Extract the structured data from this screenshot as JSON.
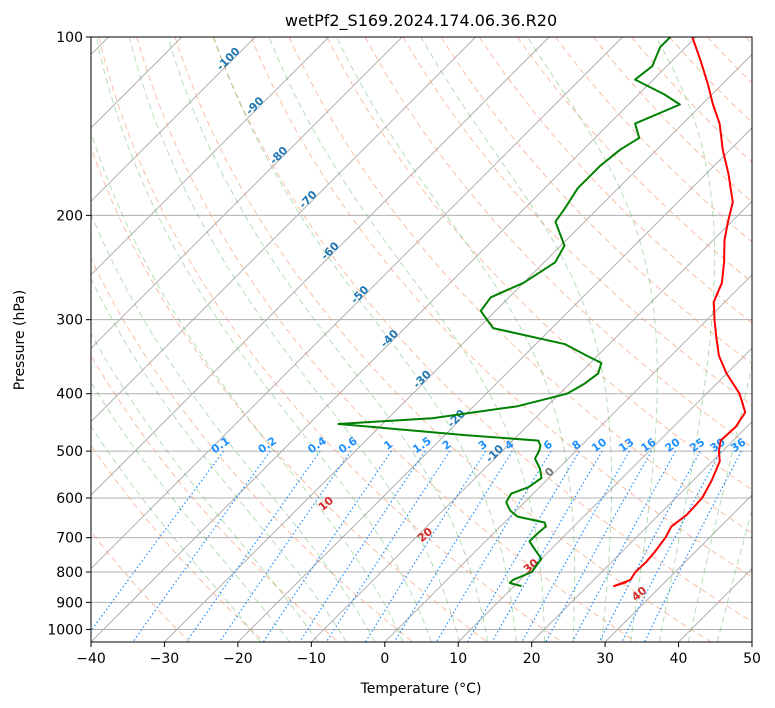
{
  "chart_data": {
    "type": "line",
    "title": "wetPf2_S169.2024.174.06.36.R20",
    "xlabel": "Temperature (°C)",
    "ylabel": "Pressure (hPa)",
    "xlim": [
      -40,
      50
    ],
    "ylim": [
      1050,
      100
    ],
    "yscale": "log",
    "grid": true,
    "x_ticks": [
      -40,
      -30,
      -20,
      -10,
      0,
      10,
      20,
      30,
      40,
      50
    ],
    "y_ticks": [
      100,
      200,
      300,
      400,
      500,
      600,
      700,
      800,
      900,
      1000
    ],
    "colors": {
      "temperature": "#ff0000",
      "dewpoint": "#008000",
      "isotherm": "#aaaaaa",
      "isobar": "#aaaaaa",
      "dry_adiabat": "#f4a582",
      "moist_adiabat": "#2ca02c",
      "mixing_ratio": "#1e90ff",
      "isotherm_label": "#1f77b4",
      "dry_adiabat_label": "#d62728"
    },
    "series": [
      {
        "key": "temperature",
        "unit": "°C",
        "points": [
          [
            832,
            24.8
          ],
          [
            845,
            23.6
          ],
          [
            825,
            25.0
          ],
          [
            800,
            24.6
          ],
          [
            770,
            24.7
          ],
          [
            740,
            24.5
          ],
          [
            700,
            24.0
          ],
          [
            670,
            23.3
          ],
          [
            640,
            23.8
          ],
          [
            600,
            23.6
          ],
          [
            560,
            22.5
          ],
          [
            520,
            21.0
          ],
          [
            500,
            19.5
          ],
          [
            480,
            18.3
          ],
          [
            455,
            18.5
          ],
          [
            430,
            17.8
          ],
          [
            400,
            14.5
          ],
          [
            370,
            10.0
          ],
          [
            345,
            6.5
          ],
          [
            320,
            3.5
          ],
          [
            300,
            1.0
          ],
          [
            280,
            -1.5
          ],
          [
            260,
            -3.0
          ],
          [
            240,
            -5.5
          ],
          [
            220,
            -8.5
          ],
          [
            205,
            -10.5
          ],
          [
            190,
            -12.5
          ],
          [
            170,
            -17.0
          ],
          [
            155,
            -21.0
          ],
          [
            140,
            -25.0
          ],
          [
            130,
            -28.5
          ],
          [
            120,
            -32.0
          ],
          [
            110,
            -36.0
          ],
          [
            100,
            -40.5
          ]
        ]
      },
      {
        "key": "dewpoint",
        "unit": "°C",
        "points": [
          [
            845,
            11.0
          ],
          [
            835,
            9.0
          ],
          [
            825,
            9.0
          ],
          [
            800,
            10.5
          ],
          [
            785,
            10.3
          ],
          [
            760,
            10.0
          ],
          [
            735,
            8.0
          ],
          [
            710,
            6.0
          ],
          [
            690,
            6.0
          ],
          [
            670,
            6.2
          ],
          [
            660,
            5.5
          ],
          [
            645,
            1.0
          ],
          [
            630,
            -0.8
          ],
          [
            610,
            -2.5
          ],
          [
            590,
            -3.0
          ],
          [
            575,
            -1.5
          ],
          [
            555,
            -1.0
          ],
          [
            535,
            -2.5
          ],
          [
            515,
            -4.5
          ],
          [
            500,
            -5.0
          ],
          [
            490,
            -5.5
          ],
          [
            480,
            -6.5
          ],
          [
            470,
            -17.0
          ],
          [
            450,
            -36.0
          ],
          [
            440,
            -24.0
          ],
          [
            420,
            -14.0
          ],
          [
            400,
            -9.0
          ],
          [
            385,
            -8.0
          ],
          [
            370,
            -7.5
          ],
          [
            355,
            -8.5
          ],
          [
            345,
            -11.5
          ],
          [
            330,
            -16.0
          ],
          [
            310,
            -28.0
          ],
          [
            290,
            -32.0
          ],
          [
            275,
            -32.5
          ],
          [
            260,
            -30.0
          ],
          [
            240,
            -28.5
          ],
          [
            225,
            -29.5
          ],
          [
            205,
            -34.0
          ],
          [
            195,
            -34.5
          ],
          [
            180,
            -35.5
          ],
          [
            165,
            -35.5
          ],
          [
            155,
            -35.0
          ],
          [
            148,
            -34.0
          ],
          [
            140,
            -36.5
          ],
          [
            130,
            -33.0
          ],
          [
            125,
            -36.5
          ],
          [
            118,
            -42.5
          ],
          [
            112,
            -42.0
          ],
          [
            104,
            -43.5
          ],
          [
            100,
            -43.5
          ]
        ]
      }
    ],
    "isotherm_labels": [
      {
        "text": "-100",
        "t": -100,
        "p": 110
      },
      {
        "text": "-90",
        "t": -90,
        "p": 132
      },
      {
        "text": "-80",
        "t": -80,
        "p": 160
      },
      {
        "text": "-70",
        "t": -70,
        "p": 190
      },
      {
        "text": "-60",
        "t": -60,
        "p": 232
      },
      {
        "text": "-50",
        "t": -50,
        "p": 275
      },
      {
        "text": "-40",
        "t": -40,
        "p": 326
      },
      {
        "text": "-30",
        "t": -30,
        "p": 382
      },
      {
        "text": "-20",
        "t": -20,
        "p": 445
      },
      {
        "text": "-10",
        "t": -10,
        "p": 510
      },
      {
        "text": "0",
        "t": 0,
        "p": 548
      }
    ],
    "dry_adiabat_labels": [
      {
        "text": "10",
        "theta": 10,
        "p": 620
      },
      {
        "text": "20",
        "theta": 20,
        "p": 700
      },
      {
        "text": "30",
        "theta": 30,
        "p": 790
      },
      {
        "text": "40",
        "theta": 40,
        "p": 880
      }
    ],
    "mixing_ratio_labels": [
      "0.1",
      "0.2",
      "0.4",
      "0.6",
      "1",
      "1.5",
      "2",
      "3",
      "4",
      "6",
      "8",
      "10",
      "13",
      "16",
      "20",
      "25",
      "30",
      "36"
    ]
  }
}
